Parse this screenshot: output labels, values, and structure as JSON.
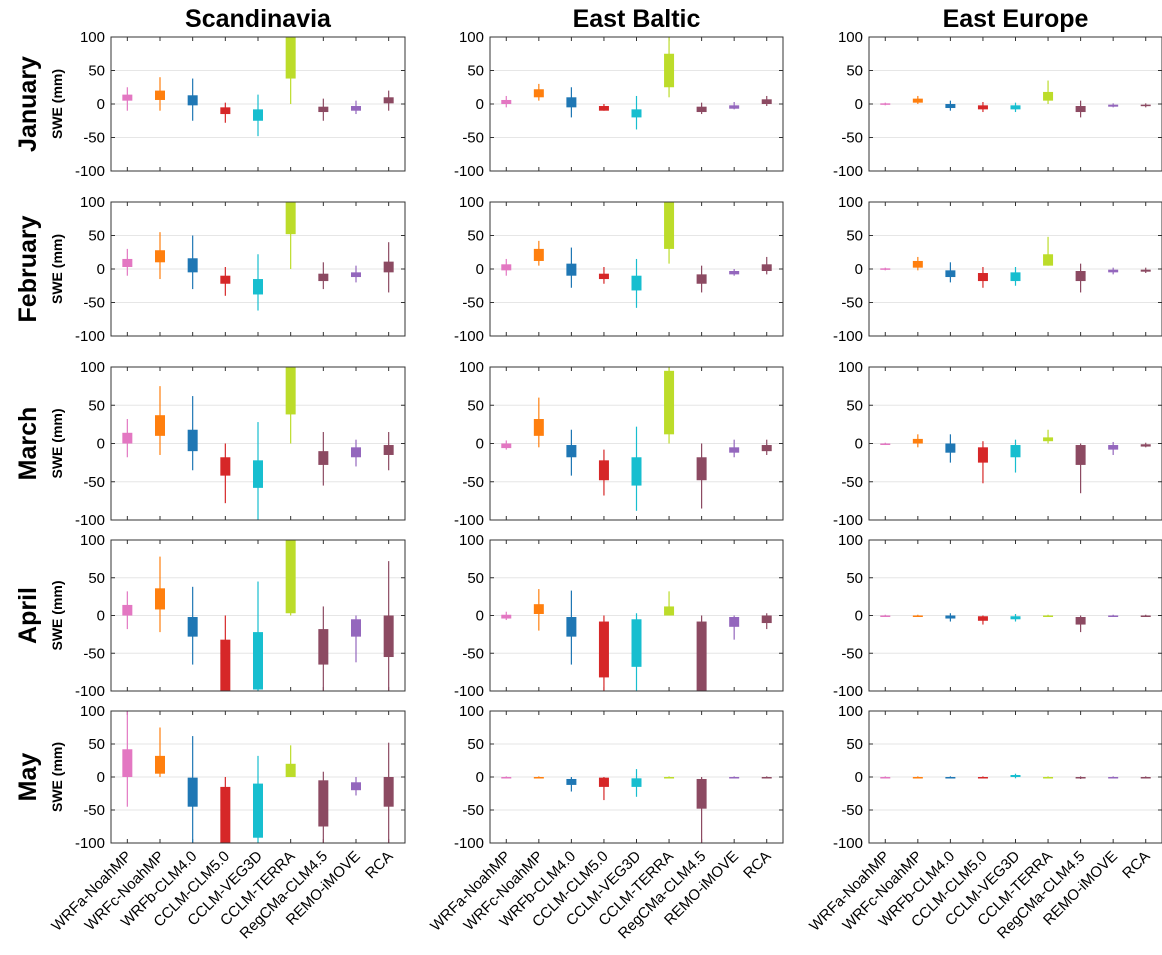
{
  "chart_data": {
    "type": "boxplot-grid",
    "columns": [
      "Scandinavia",
      "East Baltic",
      "East Europe"
    ],
    "rows": [
      "January",
      "February",
      "March",
      "April",
      "May"
    ],
    "ylabel": "SWE (mm)",
    "ylim": [
      -100,
      100
    ],
    "yticks": [
      100,
      50,
      0,
      -50,
      -100
    ],
    "grid": "horizontal",
    "categories": [
      "WRFa-NoahMP",
      "WRFc-NoahMP",
      "WRFb-CLM4.0",
      "CCLM-CLM5.0",
      "CCLM-VEG3D",
      "CCLM-TERRA",
      "RegCMa-CLM4.5",
      "REMO-iMOVE",
      "RCA"
    ],
    "colors": [
      "#e377c2",
      "#ff7f0e",
      "#1f77b4",
      "#d62728",
      "#17becf",
      "#bcdc2a",
      "#8c4a62",
      "#9467bd",
      "#8c4a62"
    ],
    "note": "each value is [whisker_low, box_low, box_high, whisker_high] in mm; panels[row][column][model]",
    "panels": [
      [
        [
          [
            -10,
            5,
            14,
            25
          ],
          [
            -10,
            6,
            20,
            40
          ],
          [
            -25,
            -2,
            13,
            38
          ],
          [
            -28,
            -15,
            -5,
            2
          ],
          [
            -48,
            -25,
            -8,
            14
          ],
          [
            0,
            38,
            100,
            100
          ],
          [
            -25,
            -12,
            -4,
            8
          ],
          [
            -15,
            -10,
            -3,
            5
          ],
          [
            -10,
            1,
            10,
            20
          ]
        ],
        [
          [
            -5,
            0,
            6,
            12
          ],
          [
            5,
            10,
            22,
            30
          ],
          [
            -20,
            -5,
            10,
            25
          ],
          [
            -10,
            -10,
            -3,
            0
          ],
          [
            -38,
            -20,
            -8,
            12
          ],
          [
            10,
            25,
            75,
            100
          ],
          [
            -15,
            -12,
            -4,
            2
          ],
          [
            -8,
            -7,
            -2,
            3
          ],
          [
            -3,
            0,
            7,
            12
          ]
        ],
        [
          [
            -2,
            -1,
            1,
            2
          ],
          [
            0,
            2,
            8,
            12
          ],
          [
            -10,
            -6,
            0,
            5
          ],
          [
            -12,
            -8,
            -2,
            3
          ],
          [
            -12,
            -8,
            -2,
            2
          ],
          [
            0,
            5,
            18,
            35
          ],
          [
            -20,
            -12,
            -3,
            5
          ],
          [
            -5,
            -4,
            -1,
            1
          ],
          [
            -5,
            -3,
            -1,
            1
          ]
        ]
      ],
      [
        [
          [
            -10,
            3,
            15,
            30
          ],
          [
            -15,
            10,
            28,
            55
          ],
          [
            -30,
            -5,
            16,
            50
          ],
          [
            -40,
            -22,
            -10,
            3
          ],
          [
            -62,
            -38,
            -15,
            22
          ],
          [
            0,
            52,
            100,
            100
          ],
          [
            -30,
            -18,
            -7,
            10
          ],
          [
            -20,
            -12,
            -5,
            5
          ],
          [
            -35,
            -5,
            11,
            40
          ]
        ],
        [
          [
            -10,
            -2,
            7,
            15
          ],
          [
            5,
            12,
            30,
            42
          ],
          [
            -28,
            -10,
            8,
            32
          ],
          [
            -22,
            -15,
            -7,
            3
          ],
          [
            -58,
            -32,
            -10,
            15
          ],
          [
            8,
            30,
            100,
            100
          ],
          [
            -35,
            -22,
            -8,
            5
          ],
          [
            -10,
            -8,
            -3,
            0
          ],
          [
            -8,
            -3,
            7,
            18
          ]
        ],
        [
          [
            -2,
            -1,
            1,
            2
          ],
          [
            -2,
            2,
            12,
            18
          ],
          [
            -20,
            -12,
            -2,
            10
          ],
          [
            -28,
            -18,
            -6,
            3
          ],
          [
            -25,
            -18,
            -5,
            3
          ],
          [
            5,
            5,
            22,
            48
          ],
          [
            -35,
            -18,
            -3,
            8
          ],
          [
            -8,
            -5,
            -1,
            2
          ],
          [
            -6,
            -4,
            -1,
            2
          ]
        ]
      ],
      [
        [
          [
            -18,
            0,
            14,
            32
          ],
          [
            -15,
            10,
            37,
            75
          ],
          [
            -35,
            -10,
            18,
            62
          ],
          [
            -78,
            -42,
            -18,
            0
          ],
          [
            -100,
            -58,
            -22,
            28
          ],
          [
            0,
            38,
            100,
            100
          ],
          [
            -55,
            -28,
            -10,
            15
          ],
          [
            -30,
            -18,
            -5,
            5
          ],
          [
            -35,
            -15,
            -2,
            15
          ]
        ],
        [
          [
            -8,
            -6,
            0,
            4
          ],
          [
            -5,
            10,
            32,
            60
          ],
          [
            -42,
            -18,
            -2,
            18
          ],
          [
            -68,
            -48,
            -22,
            -8
          ],
          [
            -88,
            -55,
            -18,
            22
          ],
          [
            0,
            12,
            95,
            100
          ],
          [
            -85,
            -48,
            -18,
            0
          ],
          [
            -18,
            -12,
            -5,
            5
          ],
          [
            -15,
            -10,
            -2,
            5
          ]
        ],
        [
          [
            -2,
            -1,
            0,
            1
          ],
          [
            -5,
            0,
            6,
            12
          ],
          [
            -25,
            -12,
            0,
            12
          ],
          [
            -52,
            -25,
            -5,
            3
          ],
          [
            -38,
            -18,
            -2,
            5
          ],
          [
            0,
            3,
            8,
            18
          ],
          [
            -65,
            -28,
            -2,
            0
          ],
          [
            -15,
            -8,
            -2,
            2
          ],
          [
            -5,
            -4,
            -1,
            1
          ]
        ]
      ],
      [
        [
          [
            -18,
            0,
            14,
            32
          ],
          [
            -22,
            8,
            36,
            78
          ],
          [
            -65,
            -28,
            -2,
            38
          ],
          [
            -100,
            -100,
            -32,
            0
          ],
          [
            -100,
            -98,
            -22,
            45
          ],
          [
            0,
            3,
            100,
            100
          ],
          [
            -100,
            -65,
            -18,
            12
          ],
          [
            -62,
            -28,
            -5,
            0
          ],
          [
            -100,
            -55,
            0,
            72
          ]
        ],
        [
          [
            -6,
            -4,
            1,
            5
          ],
          [
            -20,
            2,
            15,
            35
          ],
          [
            -65,
            -28,
            -2,
            33
          ],
          [
            -100,
            -82,
            -8,
            0
          ],
          [
            -100,
            -68,
            -5,
            3
          ],
          [
            0,
            0,
            12,
            32
          ],
          [
            -100,
            -100,
            -8,
            0
          ],
          [
            -32,
            -15,
            -2,
            0
          ],
          [
            -18,
            -10,
            0,
            3
          ]
        ],
        [
          [
            -1,
            -1,
            0,
            1
          ],
          [
            -1,
            -1,
            0,
            1
          ],
          [
            -8,
            -4,
            0,
            3
          ],
          [
            -12,
            -7,
            -1,
            0
          ],
          [
            -8,
            -5,
            -1,
            2
          ],
          [
            -1,
            -1,
            0,
            1
          ],
          [
            -22,
            -12,
            -2,
            0
          ],
          [
            -1,
            -1,
            0,
            1
          ],
          [
            -1,
            -1,
            0,
            1
          ]
        ]
      ],
      [
        [
          [
            -45,
            0,
            42,
            100
          ],
          [
            0,
            5,
            32,
            75
          ],
          [
            -100,
            -45,
            -1,
            62
          ],
          [
            -100,
            -100,
            -15,
            0
          ],
          [
            -100,
            -92,
            -10,
            32
          ],
          [
            0,
            0,
            20,
            48
          ],
          [
            -100,
            -75,
            -5,
            8
          ],
          [
            -28,
            -20,
            -8,
            0
          ],
          [
            -100,
            -45,
            0,
            52
          ]
        ],
        [
          [
            -1,
            -1,
            0,
            1
          ],
          [
            -1,
            -1,
            0,
            1
          ],
          [
            -22,
            -12,
            -3,
            0
          ],
          [
            -35,
            -15,
            -1,
            0
          ],
          [
            -30,
            -15,
            -2,
            12
          ],
          [
            -1,
            -1,
            0,
            1
          ],
          [
            -100,
            -48,
            -3,
            0
          ],
          [
            -1,
            -1,
            0,
            1
          ],
          [
            -1,
            -1,
            0,
            1
          ]
        ],
        [
          [
            -1,
            -1,
            0,
            1
          ],
          [
            -1,
            -1,
            0,
            1
          ],
          [
            -1,
            -1,
            0,
            1
          ],
          [
            -1,
            -1,
            0,
            1
          ],
          [
            -2,
            0,
            3,
            5
          ],
          [
            -1,
            -1,
            0,
            1
          ],
          [
            -3,
            -2,
            0,
            1
          ],
          [
            -1,
            -1,
            0,
            1
          ],
          [
            -1,
            -1,
            0,
            1
          ]
        ]
      ]
    ]
  }
}
